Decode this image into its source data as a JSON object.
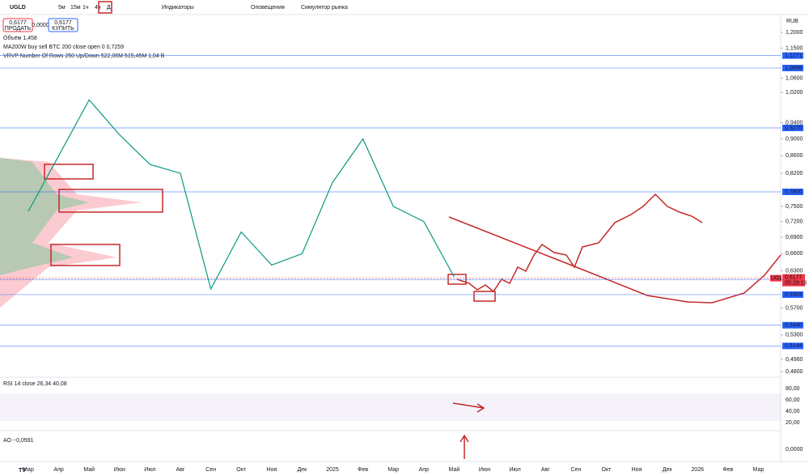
{
  "toolbar": {
    "symbol": "UGLD",
    "intervals": [
      "5м",
      "15м",
      "1ч",
      "4ч",
      "Д"
    ],
    "indicators": "Индикаторы",
    "alerts": "Оповещения",
    "replay": "Симулятор рынка",
    "currency": "RUB"
  },
  "trade": {
    "sell_price": "0,6177",
    "sell": "ПРОДАТЬ",
    "spread": "0,0000",
    "buy_price": "0,6177",
    "buy": "КУПИТЬ"
  },
  "legend": [
    "Объём  1,458",
    "MA200W buy sell BTC 200 close open 0  0,7259",
    "VRVP Number Of Rows 250 Up/Down  522,06M  515,45M  1,04 B"
  ],
  "price_axis": {
    "log": true,
    "ylim": [
      0.48,
      1.2
    ],
    "ticks": [
      {
        "value": 1.2,
        "label": "1,2000"
      },
      {
        "value": 1.15,
        "label": "1,1500"
      },
      {
        "value": 1.06,
        "label": "1,0600"
      },
      {
        "value": 1.02,
        "label": "1,0200"
      },
      {
        "value": 0.94,
        "label": "0,9400"
      },
      {
        "value": 0.9,
        "label": "0,9000"
      },
      {
        "value": 0.86,
        "label": "0,8600"
      },
      {
        "value": 0.82,
        "label": "0,8200"
      },
      {
        "value": 0.75,
        "label": "0,7500"
      },
      {
        "value": 0.72,
        "label": "0,7200"
      },
      {
        "value": 0.69,
        "label": "0,6900"
      },
      {
        "value": 0.66,
        "label": "0,6600"
      },
      {
        "value": 0.63,
        "label": "0,6300"
      },
      {
        "value": 0.57,
        "label": "0,5700"
      },
      {
        "value": 0.53,
        "label": "0,5300"
      },
      {
        "value": 0.496,
        "label": "0,4960"
      },
      {
        "value": 0.48,
        "label": "0,4800"
      }
    ],
    "levels": [
      {
        "value": 1.1271,
        "label": "1,1271",
        "color": "#2962ff"
      },
      {
        "value": 1.0898,
        "label": "1,0898",
        "color": "#2962ff"
      },
      {
        "value": 0.927,
        "label": "0,9270",
        "color": "#2962ff"
      },
      {
        "value": 0.78,
        "label": "0,7800",
        "color": "#2962ff"
      },
      {
        "value": 0.6155,
        "label": "0,6155",
        "color": "#2962ff"
      },
      {
        "value": 0.5909,
        "label": "0,5909",
        "color": "#2962ff"
      },
      {
        "value": 0.544,
        "label": "0,5440",
        "color": "#2962ff"
      },
      {
        "value": 0.5144,
        "label": "0,5144",
        "color": "#2962ff"
      }
    ],
    "last": {
      "value": 0.6177,
      "name": "UGLD",
      "label": "0,6177",
      "timer": "05:29:13",
      "color": "#f23645"
    }
  },
  "time_axis": [
    "Мар",
    "Апр",
    "Май",
    "Июн",
    "Июл",
    "Авг",
    "Сен",
    "Окт",
    "Ноя",
    "Дек",
    "2025",
    "Фев",
    "Мар",
    "Апр",
    "Май",
    "Июн",
    "Июл",
    "Авг",
    "Сен",
    "Окт",
    "Ноя",
    "Дек",
    "2026",
    "Фев",
    "Мар"
  ],
  "price": {
    "color": "#089981",
    "closes": [
      0.74,
      0.86,
      1.0,
      0.91,
      0.84,
      0.82,
      0.6,
      0.7,
      0.64,
      0.66,
      0.8,
      0.9,
      0.75,
      0.72,
      0.62
    ]
  },
  "rsi": {
    "legend": "RSI 14 close  26,34  40,08",
    "ticks": [
      "80,00",
      "60,00",
      "40,00",
      "20,00"
    ]
  },
  "ao": {
    "legend": "AO  −0,0591",
    "ticks": [
      "0,0000"
    ]
  }
}
